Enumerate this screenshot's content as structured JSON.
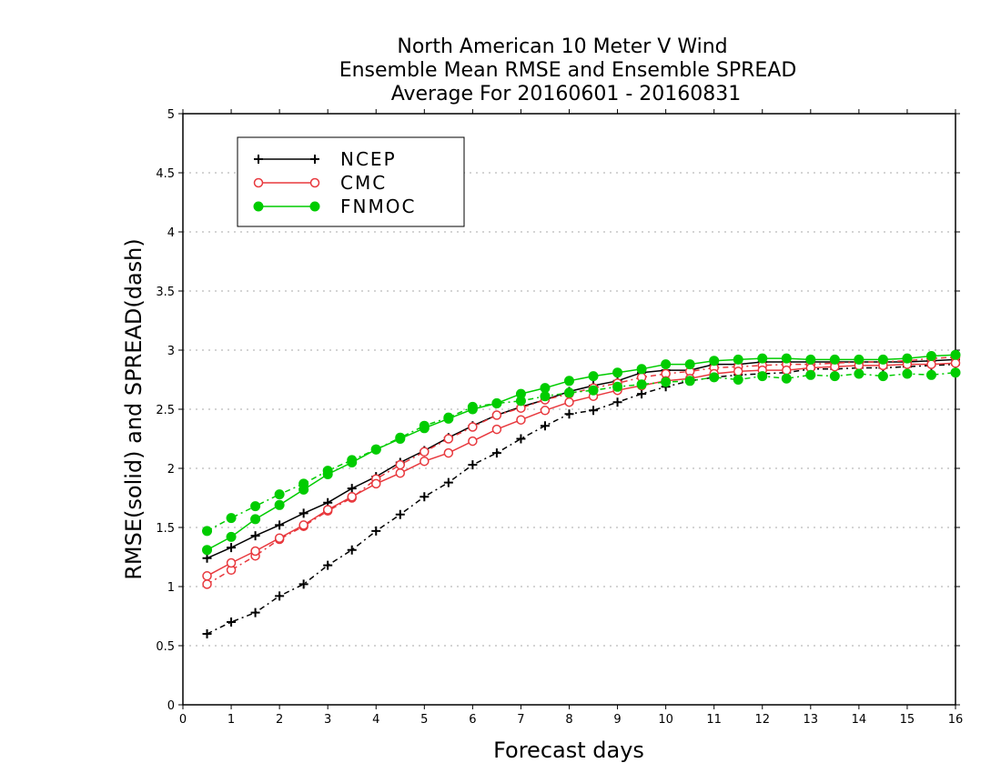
{
  "chart_data": {
    "type": "line",
    "title": [
      "North American 10 Meter V Wind",
      "Ensemble Mean RMSE and Ensemble SPREAD",
      "Average For 20160601 - 20160831"
    ],
    "xlabel": "Forecast days",
    "ylabel": "RMSE(solid) and SPREAD(dash)",
    "xlim": [
      0,
      16
    ],
    "ylim": [
      0,
      5
    ],
    "xticks": [
      "0",
      "1",
      "2",
      "3",
      "4",
      "5",
      "6",
      "7",
      "8",
      "9",
      "10",
      "11",
      "12",
      "13",
      "14",
      "15",
      "16"
    ],
    "yticks": [
      "0",
      "0.5",
      "1",
      "1.5",
      "2",
      "2.5",
      "3",
      "3.5",
      "4",
      "4.5",
      "5"
    ],
    "grid": true,
    "legend_position": "top-left",
    "x": [
      0.5,
      1,
      1.5,
      2,
      2.5,
      3,
      3.5,
      4,
      4.5,
      5,
      5.5,
      6,
      6.5,
      7,
      7.5,
      8,
      8.5,
      9,
      9.5,
      10,
      10.5,
      11,
      11.5,
      12,
      12.5,
      13,
      13.5,
      14,
      14.5,
      15,
      15.5,
      16
    ],
    "series": [
      {
        "name": "NCEP",
        "color": "#000000",
        "marker": "plus",
        "rmse": [
          1.24,
          1.33,
          1.43,
          1.52,
          1.62,
          1.71,
          1.83,
          1.93,
          2.05,
          2.15,
          2.26,
          2.36,
          2.45,
          2.52,
          2.58,
          2.65,
          2.7,
          2.74,
          2.81,
          2.83,
          2.83,
          2.88,
          2.88,
          2.9,
          2.9,
          2.9,
          2.9,
          2.9,
          2.9,
          2.9,
          2.91,
          2.92
        ],
        "spread": [
          0.6,
          0.7,
          0.78,
          0.92,
          1.02,
          1.18,
          1.31,
          1.47,
          1.61,
          1.76,
          1.88,
          2.03,
          2.13,
          2.25,
          2.36,
          2.46,
          2.49,
          2.56,
          2.63,
          2.69,
          2.74,
          2.77,
          2.79,
          2.8,
          2.81,
          2.84,
          2.84,
          2.85,
          2.85,
          2.86,
          2.87,
          2.88
        ]
      },
      {
        "name": "CMC",
        "color": "#e8383d",
        "marker": "circle",
        "rmse": [
          1.09,
          1.2,
          1.3,
          1.41,
          1.52,
          1.65,
          1.76,
          1.87,
          1.96,
          2.06,
          2.13,
          2.23,
          2.33,
          2.41,
          2.49,
          2.56,
          2.61,
          2.66,
          2.7,
          2.74,
          2.76,
          2.8,
          2.82,
          2.83,
          2.83,
          2.85,
          2.86,
          2.87,
          2.87,
          2.88,
          2.88,
          2.89
        ],
        "spread": [
          1.02,
          1.14,
          1.26,
          1.4,
          1.51,
          1.64,
          1.75,
          1.91,
          2.03,
          2.14,
          2.25,
          2.35,
          2.45,
          2.51,
          2.58,
          2.63,
          2.68,
          2.72,
          2.77,
          2.8,
          2.82,
          2.85,
          2.86,
          2.87,
          2.88,
          2.88,
          2.89,
          2.9,
          2.9,
          2.91,
          2.93,
          2.94
        ]
      },
      {
        "name": "FNMOC",
        "color": "#00cc00",
        "marker": "dot",
        "rmse": [
          1.31,
          1.42,
          1.57,
          1.69,
          1.82,
          1.95,
          2.05,
          2.16,
          2.25,
          2.34,
          2.42,
          2.5,
          2.55,
          2.63,
          2.68,
          2.74,
          2.78,
          2.81,
          2.84,
          2.88,
          2.88,
          2.91,
          2.92,
          2.93,
          2.93,
          2.92,
          2.92,
          2.92,
          2.92,
          2.93,
          2.95,
          2.96
        ],
        "spread": [
          1.47,
          1.58,
          1.68,
          1.78,
          1.87,
          1.98,
          2.07,
          2.16,
          2.26,
          2.36,
          2.43,
          2.52,
          2.55,
          2.57,
          2.61,
          2.64,
          2.66,
          2.69,
          2.71,
          2.73,
          2.74,
          2.77,
          2.75,
          2.78,
          2.76,
          2.79,
          2.78,
          2.8,
          2.78,
          2.8,
          2.79,
          2.81
        ]
      }
    ]
  }
}
